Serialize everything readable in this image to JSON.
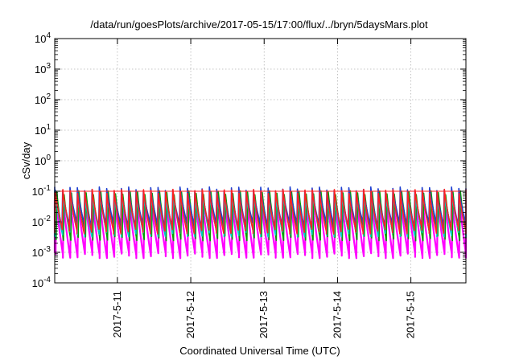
{
  "chart_data": {
    "type": "line",
    "title": "/data/run/goesPlots/archive/2017-05-15/17:00/flux/../bryn/5daysMars.plot",
    "xlabel": "Coordinated Universal Time (UTC)",
    "ylabel": "cSv/day",
    "yscale": "log",
    "ylim": [
      0.0001,
      10000
    ],
    "xlim": [
      "2017-05-10T03:30",
      "2017-05-15T18:00"
    ],
    "grid": true,
    "y_ticks": [
      {
        "base": "10",
        "exp": "-4",
        "value": 0.0001
      },
      {
        "base": "10",
        "exp": "-3",
        "value": 0.001
      },
      {
        "base": "10",
        "exp": "-2",
        "value": 0.01
      },
      {
        "base": "10",
        "exp": "-1",
        "value": 0.1
      },
      {
        "base": "10",
        "exp": "0",
        "value": 1
      },
      {
        "base": "10",
        "exp": "1",
        "value": 10
      },
      {
        "base": "10",
        "exp": "2",
        "value": 100
      },
      {
        "base": "10",
        "exp": "3",
        "value": 1000
      },
      {
        "base": "10",
        "exp": "4",
        "value": 10000
      }
    ],
    "x_ticks": [
      {
        "label": "2017-5-11",
        "date": "2017-05-11T00:00"
      },
      {
        "label": "2017-5-12",
        "date": "2017-05-12T00:00"
      },
      {
        "label": "2017-5-13",
        "date": "2017-05-13T00:00"
      },
      {
        "label": "2017-5-14",
        "date": "2017-05-14T00:00"
      },
      {
        "label": "2017-5-15",
        "date": "2017-05-15T00:00"
      }
    ],
    "series": [
      {
        "color": "#ff00ff",
        "peak": 0.05,
        "trough": 0.0008
      },
      {
        "color": "#00a000",
        "peak": 0.09,
        "trough": 0.003
      },
      {
        "color": "#1f3fd0",
        "peak": 0.12,
        "trough": 0.008
      },
      {
        "color": "#00c8c8",
        "peak": 0.07,
        "trough": 0.004
      },
      {
        "color": "#ff2020",
        "peak": 0.1,
        "trough": 0.005
      }
    ],
    "reference_line": {
      "color": "#ff2020",
      "value": 0.1
    },
    "cycles_per_day": 10
  }
}
